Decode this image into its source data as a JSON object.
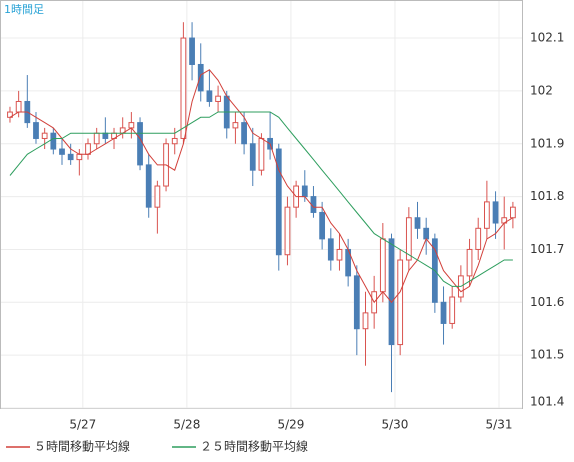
{
  "chart_data": {
    "type": "candlestick",
    "title": "1時間足",
    "open": [
      101.95,
      101.96,
      101.98,
      101.94,
      101.91,
      101.92,
      101.89,
      101.88,
      101.87,
      101.88,
      101.9,
      101.92,
      101.91,
      101.92,
      101.93,
      101.94,
      101.86,
      101.78,
      101.82,
      101.9,
      101.91,
      102.1,
      102.05,
      102.0,
      101.98,
      101.99,
      101.93,
      101.94,
      101.9,
      101.85,
      101.91,
      101.89,
      101.69,
      101.78,
      101.82,
      101.8,
      101.77,
      101.72,
      101.68,
      101.7,
      101.65,
      101.55,
      101.58,
      101.62,
      101.72,
      101.52,
      101.68,
      101.76,
      101.74,
      101.72,
      101.6,
      101.56,
      101.61,
      101.65,
      101.7,
      101.74,
      101.79,
      101.75,
      101.76
    ],
    "high": [
      101.97,
      102.0,
      102.03,
      101.96,
      101.93,
      101.93,
      101.91,
      101.9,
      101.89,
      101.91,
      101.93,
      101.95,
      101.93,
      101.95,
      101.96,
      101.95,
      101.88,
      101.83,
      101.91,
      101.93,
      102.13,
      102.13,
      102.09,
      102.04,
      102.01,
      102.0,
      101.96,
      101.96,
      101.93,
      101.92,
      101.96,
      101.9,
      101.8,
      101.83,
      101.85,
      101.82,
      101.79,
      101.74,
      101.73,
      101.72,
      101.67,
      101.62,
      101.65,
      101.75,
      101.73,
      101.7,
      101.78,
      101.79,
      101.76,
      101.73,
      101.63,
      101.63,
      101.67,
      101.72,
      101.76,
      101.83,
      101.81,
      101.8,
      101.79
    ],
    "low": [
      101.94,
      101.95,
      101.93,
      101.9,
      101.89,
      101.88,
      101.86,
      101.86,
      101.84,
      101.87,
      101.89,
      101.9,
      101.89,
      101.91,
      101.91,
      101.85,
      101.76,
      101.73,
      101.81,
      101.88,
      101.9,
      102.02,
      101.98,
      101.97,
      101.96,
      101.91,
      101.9,
      101.88,
      101.82,
      101.84,
      101.87,
      101.66,
      101.67,
      101.76,
      101.79,
      101.76,
      101.7,
      101.66,
      101.66,
      101.63,
      101.5,
      101.48,
      101.55,
      101.6,
      101.43,
      101.5,
      101.66,
      101.72,
      101.69,
      101.58,
      101.52,
      101.55,
      101.6,
      101.63,
      101.68,
      101.72,
      101.72,
      101.7,
      101.74
    ],
    "close": [
      101.96,
      101.98,
      101.94,
      101.91,
      101.92,
      101.89,
      101.88,
      101.87,
      101.88,
      101.9,
      101.92,
      101.91,
      101.92,
      101.93,
      101.94,
      101.86,
      101.78,
      101.82,
      101.9,
      101.91,
      102.1,
      102.05,
      102.0,
      101.98,
      101.99,
      101.93,
      101.94,
      101.9,
      101.85,
      101.91,
      101.89,
      101.69,
      101.78,
      101.82,
      101.8,
      101.77,
      101.72,
      101.68,
      101.7,
      101.65,
      101.55,
      101.58,
      101.62,
      101.72,
      101.52,
      101.68,
      101.76,
      101.74,
      101.72,
      101.6,
      101.56,
      101.61,
      101.65,
      101.7,
      101.74,
      101.79,
      101.75,
      101.76,
      101.78
    ],
    "up_color": "#d9534f",
    "down_color": "#4a7eb5",
    "series": [
      {
        "name": "５時間移動平均線",
        "color": "#d2403a",
        "values": [
          101.95,
          101.96,
          101.96,
          101.95,
          101.94,
          101.93,
          101.91,
          101.89,
          101.88,
          101.88,
          101.89,
          101.9,
          101.91,
          101.92,
          101.93,
          101.91,
          101.88,
          101.86,
          101.86,
          101.85,
          101.9,
          101.98,
          102.03,
          102.04,
          102.02,
          101.99,
          101.97,
          101.95,
          101.92,
          101.91,
          101.9,
          101.85,
          101.82,
          101.8,
          101.8,
          101.78,
          101.78,
          101.75,
          101.73,
          101.7,
          101.66,
          101.63,
          101.6,
          101.62,
          101.6,
          101.62,
          101.66,
          101.68,
          101.72,
          101.7,
          101.66,
          101.64,
          101.62,
          101.63,
          101.67,
          101.72,
          101.73,
          101.75,
          101.76
        ]
      },
      {
        "name": "２５時間移動平均線",
        "color": "#2e9e5e",
        "values": [
          101.84,
          101.86,
          101.88,
          101.89,
          101.9,
          101.91,
          101.91,
          101.92,
          101.92,
          101.92,
          101.92,
          101.92,
          101.92,
          101.92,
          101.92,
          101.92,
          101.92,
          101.92,
          101.92,
          101.92,
          101.93,
          101.94,
          101.95,
          101.95,
          101.96,
          101.96,
          101.96,
          101.96,
          101.96,
          101.96,
          101.96,
          101.95,
          101.93,
          101.91,
          101.89,
          101.87,
          101.85,
          101.83,
          101.81,
          101.79,
          101.77,
          101.75,
          101.73,
          101.72,
          101.71,
          101.7,
          101.69,
          101.68,
          101.67,
          101.66,
          101.64,
          101.63,
          101.63,
          101.64,
          101.65,
          101.66,
          101.67,
          101.68,
          101.68
        ]
      }
    ],
    "xlim": [
      -1.15,
      59.05
    ],
    "xticks": [
      {
        "value": 8.4,
        "label": "5/27"
      },
      {
        "value": 20.4,
        "label": "5/28"
      },
      {
        "value": 32.4,
        "label": "5/29"
      },
      {
        "value": 44.4,
        "label": "5/30"
      },
      {
        "value": 56.4,
        "label": "5/31"
      }
    ],
    "ylim": [
      101.4,
      102.172
    ],
    "yticks": [
      101.4,
      101.5,
      101.6,
      101.7,
      101.8,
      101.9,
      102,
      102.1
    ],
    "grid": true
  }
}
